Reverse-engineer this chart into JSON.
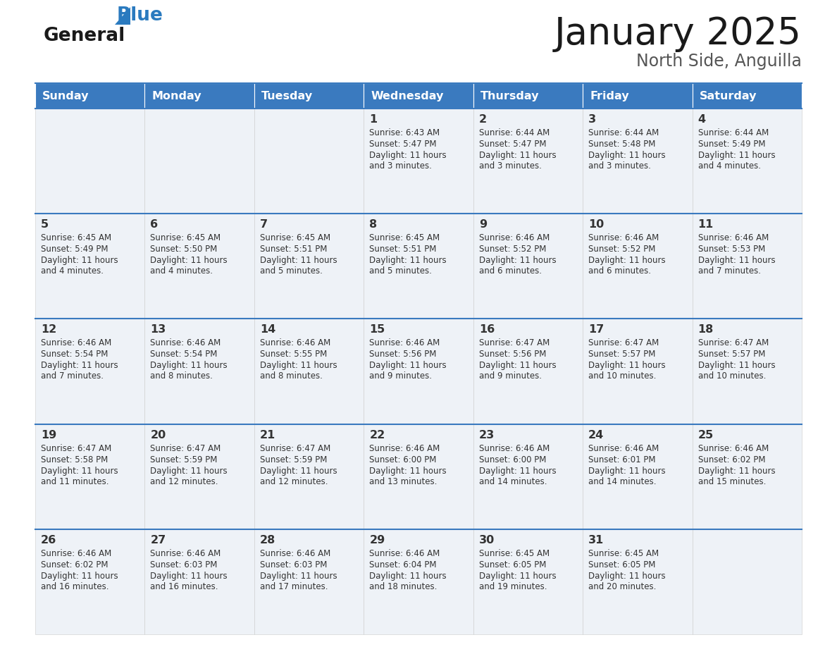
{
  "title": "January 2025",
  "subtitle": "North Side, Anguilla",
  "header_color": "#3a7abf",
  "header_text_color": "#ffffff",
  "cell_bg_color": "#eef2f7",
  "border_color": "#3a7abf",
  "separator_color": "#3a7abf",
  "text_color": "#333333",
  "days_of_week": [
    "Sunday",
    "Monday",
    "Tuesday",
    "Wednesday",
    "Thursday",
    "Friday",
    "Saturday"
  ],
  "calendar_data": [
    [
      null,
      null,
      null,
      {
        "day": "1",
        "sunrise": "6:43 AM",
        "sunset": "5:47 PM",
        "daylight": "11 hours",
        "daylight2": "and 3 minutes."
      },
      {
        "day": "2",
        "sunrise": "6:44 AM",
        "sunset": "5:47 PM",
        "daylight": "11 hours",
        "daylight2": "and 3 minutes."
      },
      {
        "day": "3",
        "sunrise": "6:44 AM",
        "sunset": "5:48 PM",
        "daylight": "11 hours",
        "daylight2": "and 3 minutes."
      },
      {
        "day": "4",
        "sunrise": "6:44 AM",
        "sunset": "5:49 PM",
        "daylight": "11 hours",
        "daylight2": "and 4 minutes."
      }
    ],
    [
      {
        "day": "5",
        "sunrise": "6:45 AM",
        "sunset": "5:49 PM",
        "daylight": "11 hours",
        "daylight2": "and 4 minutes."
      },
      {
        "day": "6",
        "sunrise": "6:45 AM",
        "sunset": "5:50 PM",
        "daylight": "11 hours",
        "daylight2": "and 4 minutes."
      },
      {
        "day": "7",
        "sunrise": "6:45 AM",
        "sunset": "5:51 PM",
        "daylight": "11 hours",
        "daylight2": "and 5 minutes."
      },
      {
        "day": "8",
        "sunrise": "6:45 AM",
        "sunset": "5:51 PM",
        "daylight": "11 hours",
        "daylight2": "and 5 minutes."
      },
      {
        "day": "9",
        "sunrise": "6:46 AM",
        "sunset": "5:52 PM",
        "daylight": "11 hours",
        "daylight2": "and 6 minutes."
      },
      {
        "day": "10",
        "sunrise": "6:46 AM",
        "sunset": "5:52 PM",
        "daylight": "11 hours",
        "daylight2": "and 6 minutes."
      },
      {
        "day": "11",
        "sunrise": "6:46 AM",
        "sunset": "5:53 PM",
        "daylight": "11 hours",
        "daylight2": "and 7 minutes."
      }
    ],
    [
      {
        "day": "12",
        "sunrise": "6:46 AM",
        "sunset": "5:54 PM",
        "daylight": "11 hours",
        "daylight2": "and 7 minutes."
      },
      {
        "day": "13",
        "sunrise": "6:46 AM",
        "sunset": "5:54 PM",
        "daylight": "11 hours",
        "daylight2": "and 8 minutes."
      },
      {
        "day": "14",
        "sunrise": "6:46 AM",
        "sunset": "5:55 PM",
        "daylight": "11 hours",
        "daylight2": "and 8 minutes."
      },
      {
        "day": "15",
        "sunrise": "6:46 AM",
        "sunset": "5:56 PM",
        "daylight": "11 hours",
        "daylight2": "and 9 minutes."
      },
      {
        "day": "16",
        "sunrise": "6:47 AM",
        "sunset": "5:56 PM",
        "daylight": "11 hours",
        "daylight2": "and 9 minutes."
      },
      {
        "day": "17",
        "sunrise": "6:47 AM",
        "sunset": "5:57 PM",
        "daylight": "11 hours",
        "daylight2": "and 10 minutes."
      },
      {
        "day": "18",
        "sunrise": "6:47 AM",
        "sunset": "5:57 PM",
        "daylight": "11 hours",
        "daylight2": "and 10 minutes."
      }
    ],
    [
      {
        "day": "19",
        "sunrise": "6:47 AM",
        "sunset": "5:58 PM",
        "daylight": "11 hours",
        "daylight2": "and 11 minutes."
      },
      {
        "day": "20",
        "sunrise": "6:47 AM",
        "sunset": "5:59 PM",
        "daylight": "11 hours",
        "daylight2": "and 12 minutes."
      },
      {
        "day": "21",
        "sunrise": "6:47 AM",
        "sunset": "5:59 PM",
        "daylight": "11 hours",
        "daylight2": "and 12 minutes."
      },
      {
        "day": "22",
        "sunrise": "6:46 AM",
        "sunset": "6:00 PM",
        "daylight": "11 hours",
        "daylight2": "and 13 minutes."
      },
      {
        "day": "23",
        "sunrise": "6:46 AM",
        "sunset": "6:00 PM",
        "daylight": "11 hours",
        "daylight2": "and 14 minutes."
      },
      {
        "day": "24",
        "sunrise": "6:46 AM",
        "sunset": "6:01 PM",
        "daylight": "11 hours",
        "daylight2": "and 14 minutes."
      },
      {
        "day": "25",
        "sunrise": "6:46 AM",
        "sunset": "6:02 PM",
        "daylight": "11 hours",
        "daylight2": "and 15 minutes."
      }
    ],
    [
      {
        "day": "26",
        "sunrise": "6:46 AM",
        "sunset": "6:02 PM",
        "daylight": "11 hours",
        "daylight2": "and 16 minutes."
      },
      {
        "day": "27",
        "sunrise": "6:46 AM",
        "sunset": "6:03 PM",
        "daylight": "11 hours",
        "daylight2": "and 16 minutes."
      },
      {
        "day": "28",
        "sunrise": "6:46 AM",
        "sunset": "6:03 PM",
        "daylight": "11 hours",
        "daylight2": "and 17 minutes."
      },
      {
        "day": "29",
        "sunrise": "6:46 AM",
        "sunset": "6:04 PM",
        "daylight": "11 hours",
        "daylight2": "and 18 minutes."
      },
      {
        "day": "30",
        "sunrise": "6:45 AM",
        "sunset": "6:05 PM",
        "daylight": "11 hours",
        "daylight2": "and 19 minutes."
      },
      {
        "day": "31",
        "sunrise": "6:45 AM",
        "sunset": "6:05 PM",
        "daylight": "11 hours",
        "daylight2": "and 20 minutes."
      },
      null
    ]
  ]
}
